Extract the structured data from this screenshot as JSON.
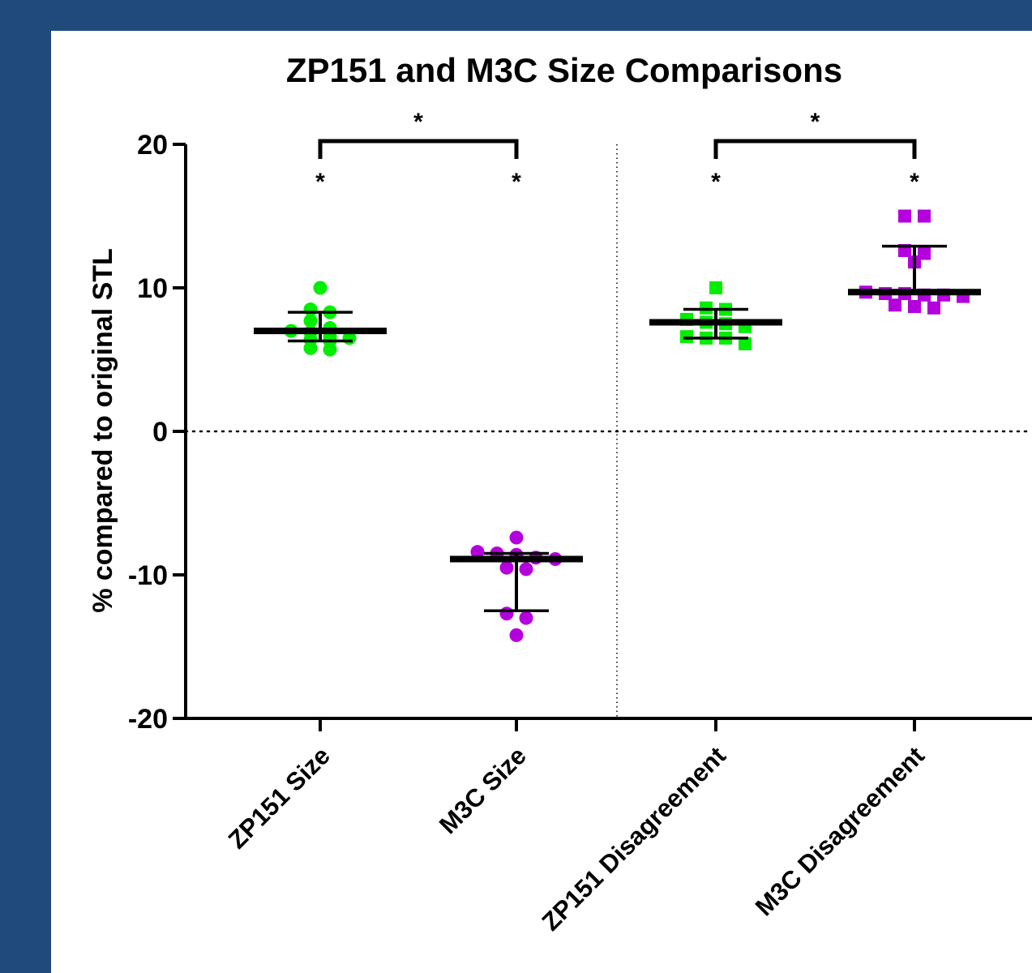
{
  "chart_data": {
    "type": "scatter",
    "title": "ZP151 and M3C Size Comparisons",
    "ylabel": "% compared to original STL",
    "xlabel": "",
    "ylim": [
      -20,
      20
    ],
    "yticks": [
      "20",
      "10",
      "0",
      "-10",
      "-20"
    ],
    "ytick_values": [
      20,
      10,
      0,
      -10,
      -20
    ],
    "categories": [
      "ZP151 Size",
      "M3C Size",
      "ZP151 Disagreement",
      "M3C Disagreement"
    ],
    "grid": false,
    "reference_line": 0,
    "groups": [
      {
        "category": "ZP151 Size",
        "marker": "circle",
        "color": "#00ee00",
        "values": [
          10.0,
          8.5,
          8.3,
          7.7,
          7.2,
          7.0,
          6.9,
          6.6,
          6.5,
          6.4,
          6.3,
          5.7,
          5.8
        ],
        "mean": 7.0,
        "sd_upper": 8.3,
        "sd_lower": 6.3,
        "significance": "*"
      },
      {
        "category": "M3C Size",
        "marker": "circle",
        "color": "#b300dd",
        "values": [
          -7.4,
          -8.4,
          -8.5,
          -8.6,
          -8.8,
          -8.9,
          -9.5,
          -9.6,
          -12.7,
          -13.0,
          -14.2
        ],
        "mean": -8.9,
        "sd_upper": -8.5,
        "sd_lower": -12.5,
        "significance": "*"
      },
      {
        "category": "ZP151 Disagreement",
        "marker": "square",
        "color": "#00ee00",
        "values": [
          10.0,
          8.6,
          8.5,
          7.8,
          7.6,
          7.5,
          7.3,
          6.6,
          6.5,
          6.5,
          6.1
        ],
        "mean": 7.6,
        "sd_upper": 8.5,
        "sd_lower": 6.5,
        "significance": "*"
      },
      {
        "category": "M3C Disagreement",
        "marker": "square",
        "color": "#b300dd",
        "values": [
          15.0,
          15.0,
          12.6,
          12.4,
          11.8,
          9.7,
          9.6,
          9.5,
          9.4,
          9.5,
          9.6,
          8.7,
          8.6,
          8.8
        ],
        "mean": 9.7,
        "sd_upper": 12.9,
        "sd_lower": 9.6,
        "significance": "*"
      }
    ],
    "comparisons": [
      {
        "between": [
          "ZP151 Size",
          "M3C Size"
        ],
        "label": "*"
      },
      {
        "between": [
          "ZP151 Disagreement",
          "M3C Disagreement"
        ],
        "label": "*"
      }
    ]
  }
}
